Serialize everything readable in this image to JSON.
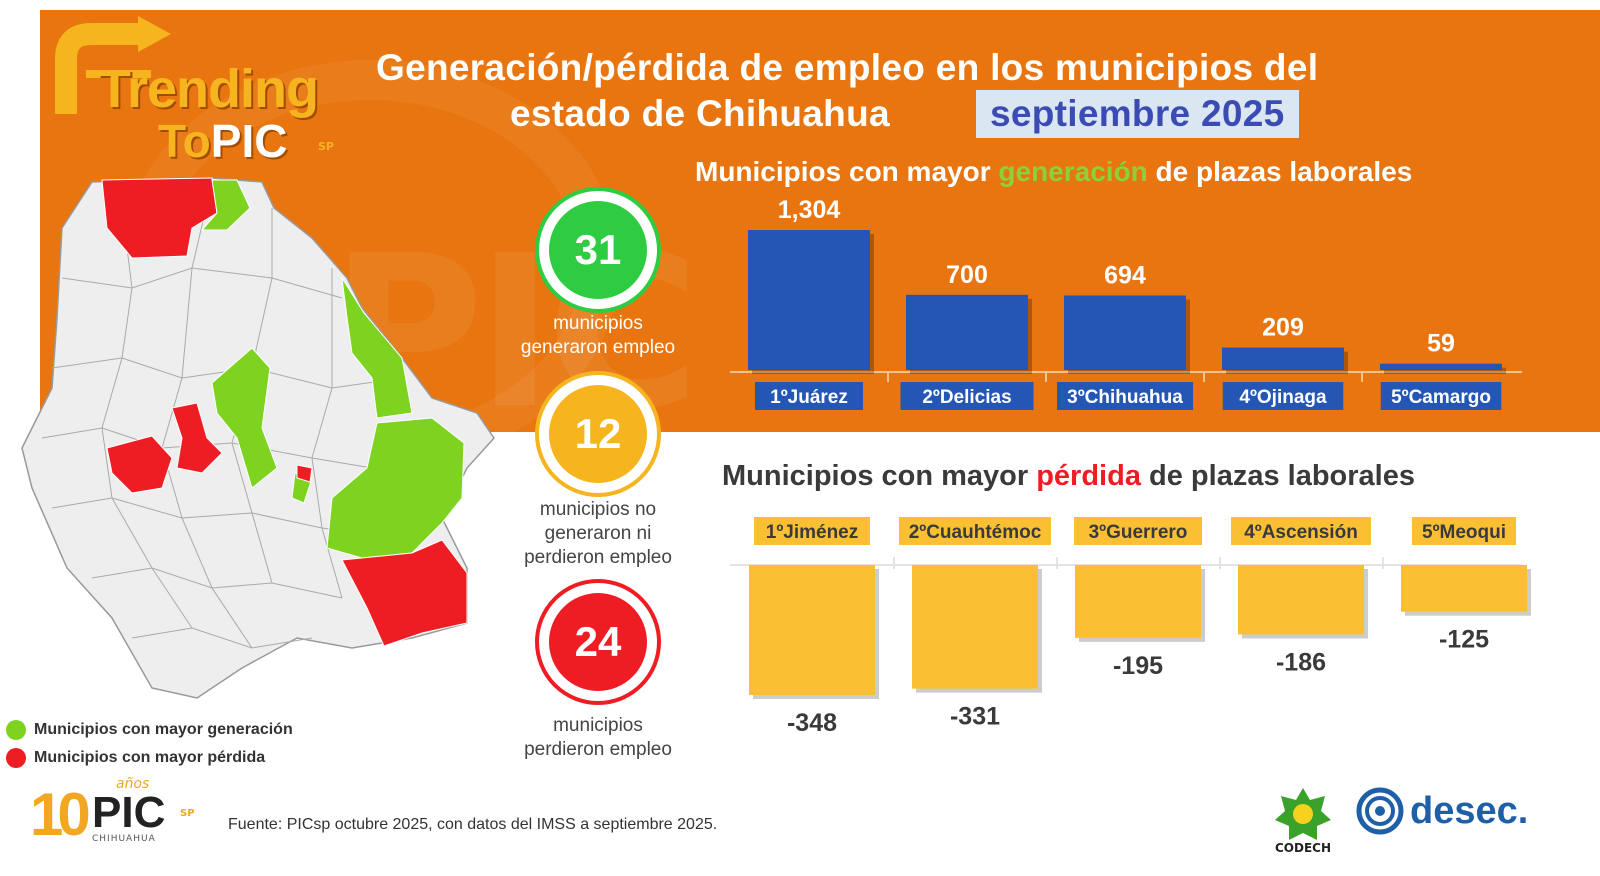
{
  "header": {
    "brand_word1": "Trending",
    "brand_word2_a": "To",
    "brand_word2_b": "PIC",
    "brand_sp": "SP",
    "title_line1": "Generación/pérdida de empleo en los municipios del",
    "title_line2": "estado de Chihuahua",
    "title_month": "septiembre 2025"
  },
  "watermark": {
    "text": "PIC"
  },
  "stats": [
    {
      "value": "31",
      "label_lines": [
        "municipios",
        "generaron empleo"
      ],
      "color": "#2ecc40"
    },
    {
      "value": "12",
      "label_lines": [
        "municipios no",
        "generaron ni",
        "perdieron empleo"
      ],
      "color": "#f6b41f"
    },
    {
      "value": "24",
      "label_lines": [
        "municipios",
        "perdieron empleo"
      ],
      "color": "#ee1d23"
    }
  ],
  "gen_heading": {
    "pre": "Municipios con mayor ",
    "highlight": "generación",
    "post": " de plazas laborales"
  },
  "loss_heading": {
    "pre": "Municipios con mayor ",
    "highlight": "pérdida",
    "post": " de plazas laborales"
  },
  "chart_data": [
    {
      "type": "bar",
      "title": "Municipios con mayor generación de plazas laborales",
      "categories": [
        "1ºJuárez",
        "2ºDelicias",
        "3ºChihuahua",
        "4ºOjinaga",
        "5ºCamargo"
      ],
      "values": [
        1304,
        700,
        694,
        209,
        59
      ],
      "value_labels": [
        "1,304",
        "700",
        "694",
        "209",
        "59"
      ],
      "ylim": [
        0,
        1304
      ],
      "bar_color": "#2457b5"
    },
    {
      "type": "bar",
      "title": "Municipios con mayor pérdida de plazas laborales",
      "categories": [
        "1ºJiménez",
        "2ºCuauhtémoc",
        "3ºGuerrero",
        "4ºAscensión",
        "5ºMeoqui"
      ],
      "values": [
        -348,
        -331,
        -195,
        -186,
        -125
      ],
      "value_labels": [
        "-348",
        "-331",
        "-195",
        "-186",
        "-125"
      ],
      "ylim": [
        -348,
        0
      ],
      "bar_color": "#fbbf33"
    }
  ],
  "legend": [
    {
      "label": "Municipios con mayor generación",
      "color": "#7ed321"
    },
    {
      "label": "Municipios con mayor pérdida",
      "color": "#ee1d23"
    }
  ],
  "footer": {
    "source": "Fuente: PICsp octubre 2025, con datos del IMSS a septiembre 2025.",
    "pic10_ten": "10",
    "pic10_pic": "PIC",
    "pic10_anos": "años",
    "pic10_city": "CHIHUAHUA",
    "pic10_sp": "SP",
    "codech_label": "CODECH",
    "desec_label": "desec."
  }
}
